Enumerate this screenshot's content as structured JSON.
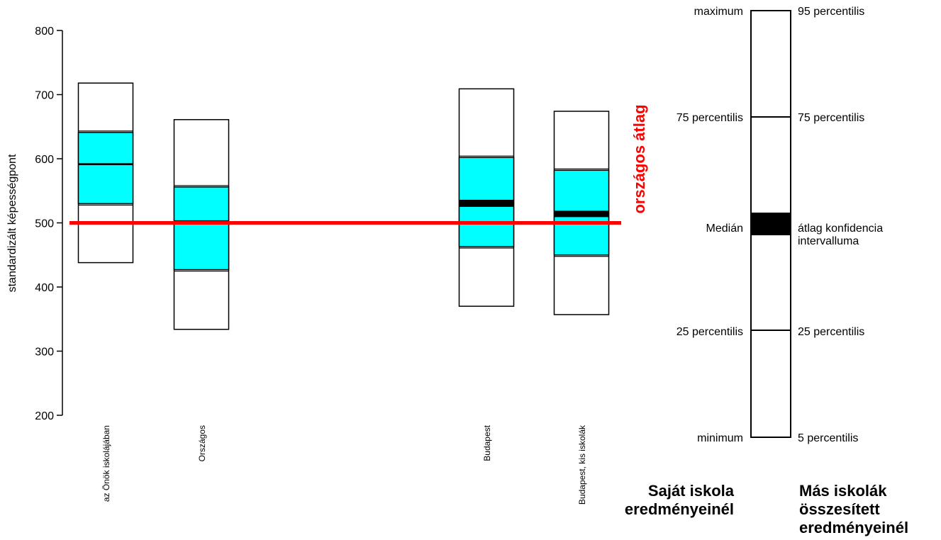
{
  "chart_data": {
    "type": "boxplot",
    "ylabel": "standardizált képességpont",
    "ylim": [
      200,
      800
    ],
    "yticks": [
      200,
      300,
      400,
      500,
      600,
      700,
      800
    ],
    "grid": false,
    "reference_line": {
      "value": 500,
      "label": "országos átlag",
      "color": "#ff0000"
    },
    "categories": [
      "az Önök iskolájában",
      "Országos",
      "Budapest",
      "Budapest, kis iskolák"
    ],
    "series": [
      {
        "category": "az Önök iskolájában",
        "p5": 438,
        "p25": 530,
        "p75": 641,
        "p95": 718,
        "mean_ci": [
          590,
          593
        ]
      },
      {
        "category": "Országos",
        "p5": 334,
        "p25": 427,
        "p75": 556,
        "p95": 661,
        "mean_ci": [
          501,
          504
        ]
      },
      {
        "category": "Budapest",
        "p5": 370,
        "p25": 463,
        "p75": 602,
        "p95": 709,
        "mean_ci": [
          525,
          536
        ]
      },
      {
        "category": "Budapest, kis iskolák",
        "p5": 357,
        "p25": 450,
        "p75": 582,
        "p95": 674,
        "mean_ci": [
          509,
          519
        ]
      }
    ],
    "colors": {
      "iqr": "#00ffff",
      "reference": "#ff0000",
      "ci": "#000000"
    }
  },
  "legend": {
    "left_labels": {
      "max": "maximum",
      "p75": "75 percentilis",
      "median": "Medián",
      "p25": "25 percentilis",
      "min": "minimum"
    },
    "right_labels": {
      "p95": "95 percentilis",
      "p75": "75 percentilis",
      "ci_line1": "átlag konfidencia",
      "ci_line2": "intervalluma",
      "p25": "25 percentilis",
      "p5": "5 percentilis"
    },
    "caption_left": [
      "Saját iskola",
      "eredményeinél"
    ],
    "caption_right": [
      "Más iskolák",
      "összesített",
      "eredményeinél"
    ]
  }
}
